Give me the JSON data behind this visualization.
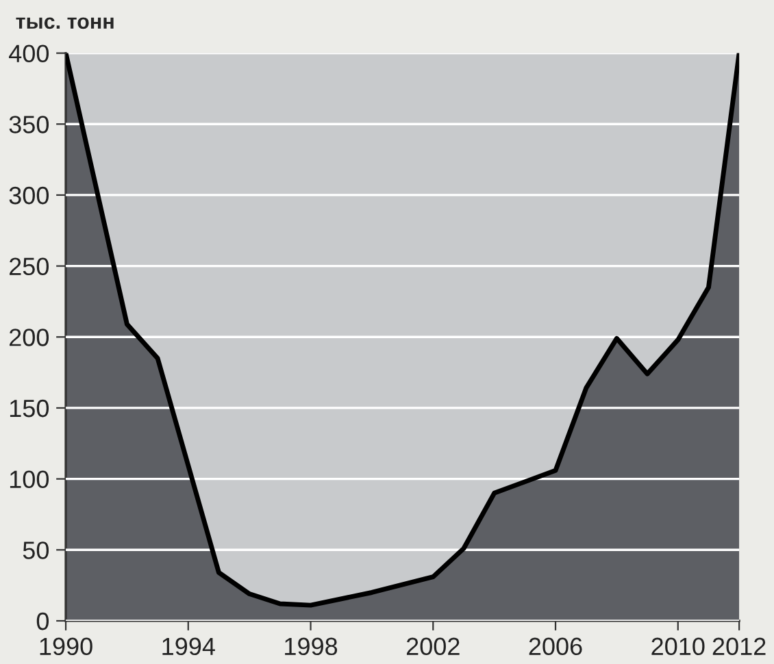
{
  "chart_data": {
    "type": "area",
    "ylabel": "тыс. тонн",
    "x": [
      1990,
      1992,
      1993,
      1995,
      1996,
      1997,
      1998,
      2000,
      2002,
      2003,
      2004,
      2006,
      2007,
      2008,
      2009,
      2010,
      2011,
      2012
    ],
    "series": [
      {
        "color": "#5d5f64",
        "values": [
          400,
          209,
          185,
          34,
          19,
          12,
          11,
          20,
          31,
          51,
          90,
          106,
          164,
          199,
          174,
          198,
          235,
          400
        ]
      }
    ],
    "xlim": [
      1990,
      2012
    ],
    "xticks": [
      1990,
      1994,
      1998,
      2002,
      2006,
      2010,
      2012
    ],
    "ylim": [
      0,
      400
    ],
    "yticks": [
      0,
      50,
      100,
      150,
      200,
      250,
      300,
      350,
      400
    ],
    "grid": "y",
    "line_style": "solid"
  }
}
